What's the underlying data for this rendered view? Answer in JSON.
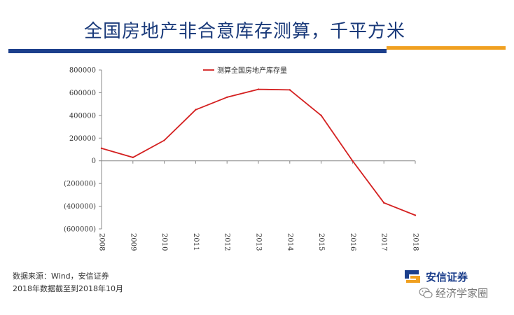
{
  "slide": {
    "title": "全国房地产非合意库存测算，千平方米",
    "source_line": "数据来源：Wind，安信证券",
    "note_line": "2018年数据截至到2018年10月",
    "logo_text": "安信证券",
    "watermark": "经济学家圈"
  },
  "colors": {
    "title": "#1a3a7a",
    "rule_blue": "#1c3f8c",
    "rule_orange": "#f0a020",
    "series": "#d42020"
  },
  "icons": {
    "logo": "anxin-logo-icon",
    "wechat": "wechat-icon"
  },
  "chart_data": {
    "type": "line",
    "x": [
      "2008",
      "2009",
      "2010",
      "2011",
      "2012",
      "2013",
      "2014",
      "2015",
      "2016",
      "2017",
      "2018"
    ],
    "series": [
      {
        "name": "测算全国房地产库存量",
        "values": [
          110000,
          30000,
          180000,
          450000,
          560000,
          630000,
          625000,
          400000,
          0,
          -370000,
          -480000
        ]
      }
    ],
    "yticks": [
      800000,
      600000,
      400000,
      200000,
      0,
      -200000,
      -400000,
      -600000
    ],
    "ytick_labels": [
      "800000",
      "600000",
      "400000",
      "200000",
      "0",
      "(200000)",
      "(400000)",
      "(600000)"
    ],
    "ylim": [
      -600000,
      800000
    ],
    "legend": "top-center",
    "grid": false
  }
}
